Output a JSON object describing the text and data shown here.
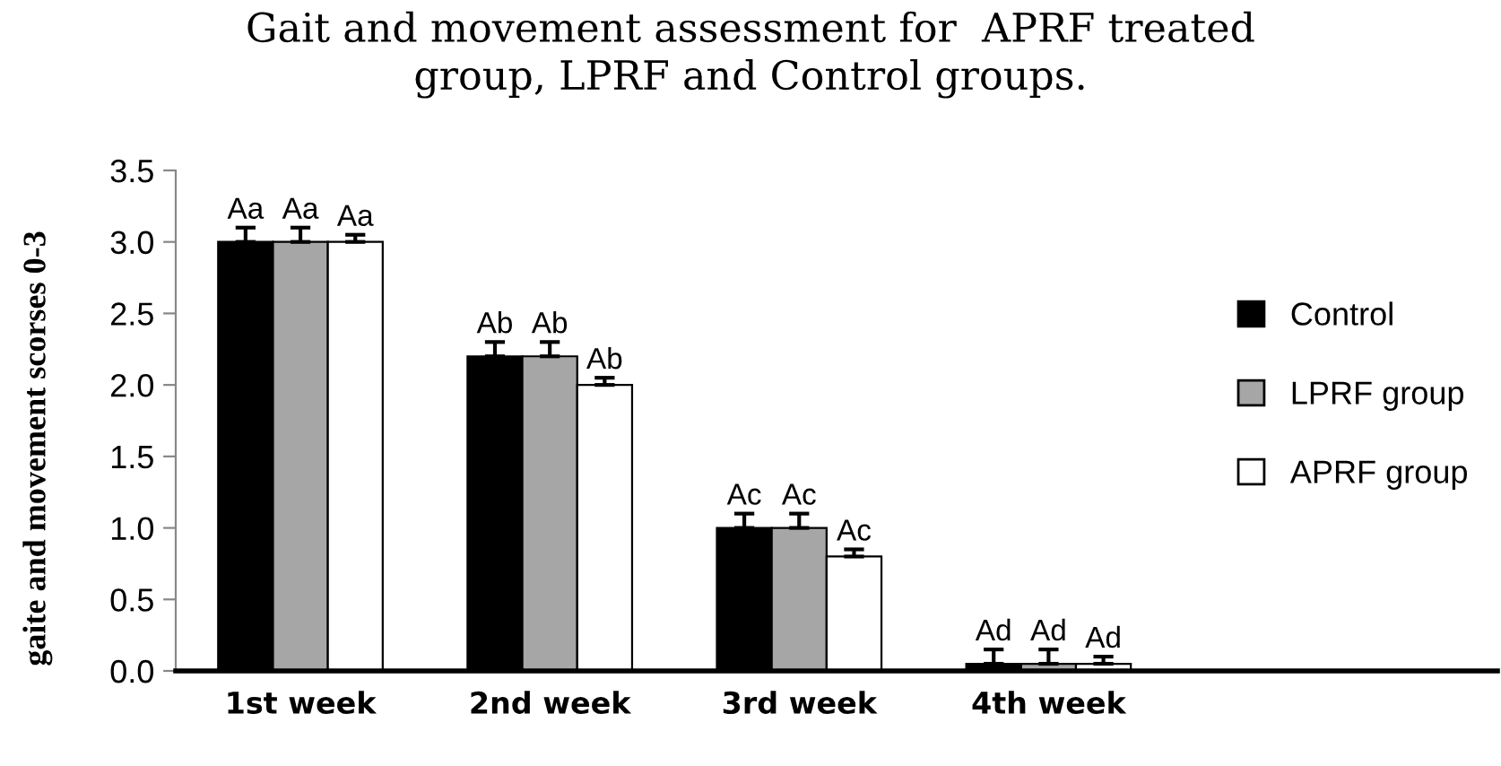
{
  "chart_data": {
    "type": "bar",
    "title": "Gait and movement assessment for  APRF treated\ngroup, LPRF and Control groups.",
    "ylabel": "gaite and movement scorses 0-3",
    "categories": [
      "1st week",
      "2nd week",
      "3rd week",
      "4th week"
    ],
    "series": [
      {
        "name": "Control",
        "color": "#000000",
        "values": [
          3.0,
          2.2,
          1.0,
          0.05
        ],
        "errors": [
          [
            3.0,
            3.1
          ],
          [
            2.2,
            2.3
          ],
          [
            1.0,
            1.1
          ],
          [
            0.05,
            0.15
          ]
        ],
        "value_labels": [
          "Aa",
          "Ab",
          "Ac",
          "Ad"
        ]
      },
      {
        "name": "LPRF group",
        "color": "#a6a6a6",
        "values": [
          3.0,
          2.2,
          1.0,
          0.05
        ],
        "errors": [
          [
            3.0,
            3.1
          ],
          [
            2.2,
            2.3
          ],
          [
            1.0,
            1.1
          ],
          [
            0.05,
            0.15
          ]
        ],
        "value_labels": [
          "Aa",
          "Ab",
          "Ac",
          "Ad"
        ]
      },
      {
        "name": "APRF group",
        "color": "#ffffff",
        "values": [
          3.0,
          2.0,
          0.8,
          0.05
        ],
        "errors": [
          [
            3.0,
            3.05
          ],
          [
            2.0,
            2.05
          ],
          [
            0.8,
            0.85
          ],
          [
            0.05,
            0.1
          ]
        ],
        "value_labels": [
          "Aa",
          "Ab",
          "Ac",
          "Ad"
        ]
      }
    ],
    "ylim": [
      0,
      3.5
    ],
    "yticks": [
      {
        "value": 0,
        "label": "0.0"
      },
      {
        "value": 0.5,
        "label": "0.5"
      },
      {
        "value": 1,
        "label": "1.0"
      },
      {
        "value": 1.5,
        "label": "1.5"
      },
      {
        "value": 2,
        "label": "2.0"
      },
      {
        "value": 2.5,
        "label": "2.5"
      },
      {
        "value": 3,
        "label": "3.0"
      },
      {
        "value": 3.5,
        "label": "3.5"
      }
    ],
    "legend": "right",
    "grid": false
  }
}
